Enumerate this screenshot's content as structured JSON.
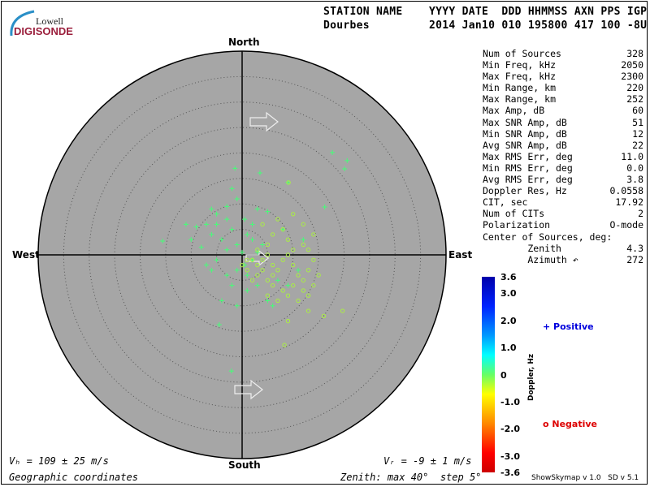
{
  "header": {
    "labels": "STATION NAME    YYYY DATE  DDD HHMMSS AXN PPS IGP",
    "values": "Dourbes         2014 Jan10 010 195800 417 100 -8U"
  },
  "logo": {
    "line1": "Lowell",
    "line2": "DIGISONDE"
  },
  "directions": {
    "north": "North",
    "south": "South",
    "east": "East",
    "west": "West"
  },
  "stats": [
    {
      "label": "Num of Sources",
      "value": "328"
    },
    {
      "label": "Min Freq, kHz",
      "value": "2050"
    },
    {
      "label": "Max Freq, kHz",
      "value": "2300"
    },
    {
      "label": "Min Range, km",
      "value": "220"
    },
    {
      "label": "Max Range, km",
      "value": "252"
    },
    {
      "label": "Max Amp, dB",
      "value": "60"
    },
    {
      "label": "Max SNR Amp, dB",
      "value": "51"
    },
    {
      "label": "Min SNR Amp, dB",
      "value": "12"
    },
    {
      "label": "Avg SNR Amp, dB",
      "value": "22"
    },
    {
      "label": "Max RMS Err, deg",
      "value": "11.0"
    },
    {
      "label": "Min RMS Err, deg",
      "value": "0.0"
    },
    {
      "label": "Avg RMS Err, deg",
      "value": "3.8"
    },
    {
      "label": "Doppler Res, Hz",
      "value": "0.0558"
    },
    {
      "label": "CIT, sec",
      "value": "17.92"
    },
    {
      "label": "Num of CITs",
      "value": "2"
    },
    {
      "label": "Polarization",
      "value": "O-mode"
    },
    {
      "label": "Center of Sources, deg:",
      "value": ""
    },
    {
      "label": "        Zenith",
      "value": "4.3"
    },
    {
      "label": "        Azimuth ↶",
      "value": "272"
    }
  ],
  "footer": {
    "vh": "Vₕ = 109 ± 25 m/s",
    "vz": "Vᵣ = -9 ± 1 m/s",
    "coords": "Geographic coordinates",
    "zenith": "Zenith: max 40°  step 5°",
    "version": "ShowSkymap v 1.0   SD v 5.1"
  },
  "colorbar": {
    "title": "Doppler, Hz",
    "ticks": [
      "3.6",
      "3.0",
      "2.0",
      "1.0",
      "0",
      "-1.0",
      "-2.0",
      "-3.0",
      "-3.6"
    ],
    "tick_values": [
      3.6,
      3.0,
      2.0,
      1.0,
      0,
      -1.0,
      -2.0,
      -3.0,
      -3.6
    ]
  },
  "legend": {
    "positive": "Positive",
    "negative": "Negative",
    "positive_color": "#0000dd",
    "negative_color": "#dd0000"
  },
  "skymap": {
    "max_zenith_deg": 40,
    "step_deg": 5,
    "background": "#a6a6a6",
    "velocity_azimuth_deg": 90,
    "sources_east_north_doppler": [
      [
        -1.4,
        17,
        0.4
      ],
      [
        3.5,
        16.1,
        0.4
      ],
      [
        -1,
        11,
        0.4
      ],
      [
        -3,
        9.5,
        0.4
      ],
      [
        -5,
        8,
        0.4
      ],
      [
        -7,
        6,
        0.4
      ],
      [
        -9,
        5.5,
        0.4
      ],
      [
        -15.6,
        2.7,
        0.4
      ],
      [
        -6,
        4,
        0.4
      ],
      [
        -4,
        3,
        0.4
      ],
      [
        -2,
        5,
        0.4
      ],
      [
        0.5,
        7,
        0.4
      ],
      [
        2,
        6,
        0.4
      ],
      [
        -3,
        1,
        0.4
      ],
      [
        -5,
        -1,
        0.4
      ],
      [
        -7,
        -2,
        0.4
      ],
      [
        -1,
        -3,
        0.4
      ],
      [
        0.5,
        -2,
        0.4
      ],
      [
        2,
        -1,
        0.4
      ],
      [
        3,
        0.5,
        0.4
      ],
      [
        -2,
        -6,
        0.4
      ],
      [
        -4,
        -9,
        0.4
      ],
      [
        -4.5,
        -13.7,
        0.4
      ],
      [
        -2.1,
        -22.8,
        0.4
      ],
      [
        17.7,
        20.1,
        0.4
      ],
      [
        20.6,
        18.5,
        0.4
      ],
      [
        20.1,
        16.9,
        0.4
      ],
      [
        16.2,
        9.4,
        0.4
      ],
      [
        3,
        9,
        0.4
      ],
      [
        5,
        8.5,
        0.4
      ],
      [
        -8,
        1.5,
        0.4
      ],
      [
        -10,
        3,
        0.4
      ],
      [
        -6,
        9,
        0.4
      ],
      [
        -2,
        13,
        0.4
      ],
      [
        1,
        4,
        0.4
      ],
      [
        4,
        2,
        0.4
      ],
      [
        -3,
        7,
        0.4
      ],
      [
        -1,
        2,
        0.4
      ],
      [
        1,
        -4,
        0.4
      ],
      [
        3,
        -6,
        0.4
      ],
      [
        5,
        -9,
        0.4
      ],
      [
        7,
        -5,
        0.4
      ],
      [
        9,
        -6,
        0.4
      ],
      [
        11,
        -3,
        0.4
      ],
      [
        12,
        3,
        0.4
      ],
      [
        8,
        5,
        0.4
      ],
      [
        -1,
        -10,
        0.4
      ],
      [
        6,
        -10,
        0.4
      ],
      [
        1,
        -7,
        0.4
      ],
      [
        -5,
        6,
        0.4
      ],
      [
        -3,
        -4,
        0.4
      ],
      [
        0,
        0.5,
        0.4
      ],
      [
        2,
        3,
        0.4
      ],
      [
        -6,
        -3,
        0.4
      ],
      [
        -11,
        6,
        0.4
      ],
      [
        9,
        14.2,
        0.4
      ],
      [
        2,
        -1,
        -0.5
      ],
      [
        3,
        -2,
        -0.5
      ],
      [
        4,
        -1,
        -0.5
      ],
      [
        5,
        0,
        -0.5
      ],
      [
        6,
        -2,
        -0.5
      ],
      [
        7,
        -3,
        -0.5
      ],
      [
        8,
        -1,
        -0.5
      ],
      [
        9,
        0,
        -0.5
      ],
      [
        10,
        -2,
        -0.5
      ],
      [
        11,
        -4,
        -0.5
      ],
      [
        12,
        -5,
        -0.5
      ],
      [
        13,
        -3,
        -0.5
      ],
      [
        14,
        -1,
        -0.5
      ],
      [
        13,
        1,
        -0.5
      ],
      [
        12,
        2,
        -0.5
      ],
      [
        10,
        1,
        -0.5
      ],
      [
        9,
        3,
        -0.5
      ],
      [
        8,
        5,
        -0.5
      ],
      [
        6,
        4,
        -0.5
      ],
      [
        5,
        2,
        -0.5
      ],
      [
        4,
        -3,
        -0.5
      ],
      [
        3,
        -4,
        -0.5
      ],
      [
        5,
        -5,
        -0.5
      ],
      [
        6,
        -6,
        -0.5
      ],
      [
        8,
        -7,
        -0.5
      ],
      [
        9,
        -8,
        -0.5
      ],
      [
        10,
        -6,
        -0.5
      ],
      [
        12,
        -7,
        -0.5
      ],
      [
        13,
        -8,
        -0.5
      ],
      [
        14,
        -6,
        -0.5
      ],
      [
        11,
        -9,
        -0.5
      ],
      [
        7,
        -9,
        -0.5
      ],
      [
        5,
        -8,
        -0.5
      ],
      [
        2,
        -5,
        -0.5
      ],
      [
        1,
        -3,
        -0.5
      ],
      [
        3,
        1,
        -0.5
      ],
      [
        4,
        6,
        -0.5
      ],
      [
        7,
        7,
        -0.5
      ],
      [
        10,
        8,
        -0.5
      ],
      [
        12,
        6,
        -0.5
      ],
      [
        15,
        -4,
        -0.5
      ],
      [
        13,
        -11,
        -0.5
      ],
      [
        19.7,
        -11,
        -0.5
      ],
      [
        8.3,
        -17.7,
        -0.5
      ],
      [
        9,
        -13,
        -0.5
      ],
      [
        14,
        4,
        -0.5
      ],
      [
        9.1,
        14.2,
        -0.5
      ],
      [
        16,
        -12,
        -0.5
      ],
      [
        6,
        -4,
        -0.5
      ],
      [
        1,
        -1,
        -0.5
      ],
      [
        0,
        -2,
        -0.5
      ]
    ]
  }
}
